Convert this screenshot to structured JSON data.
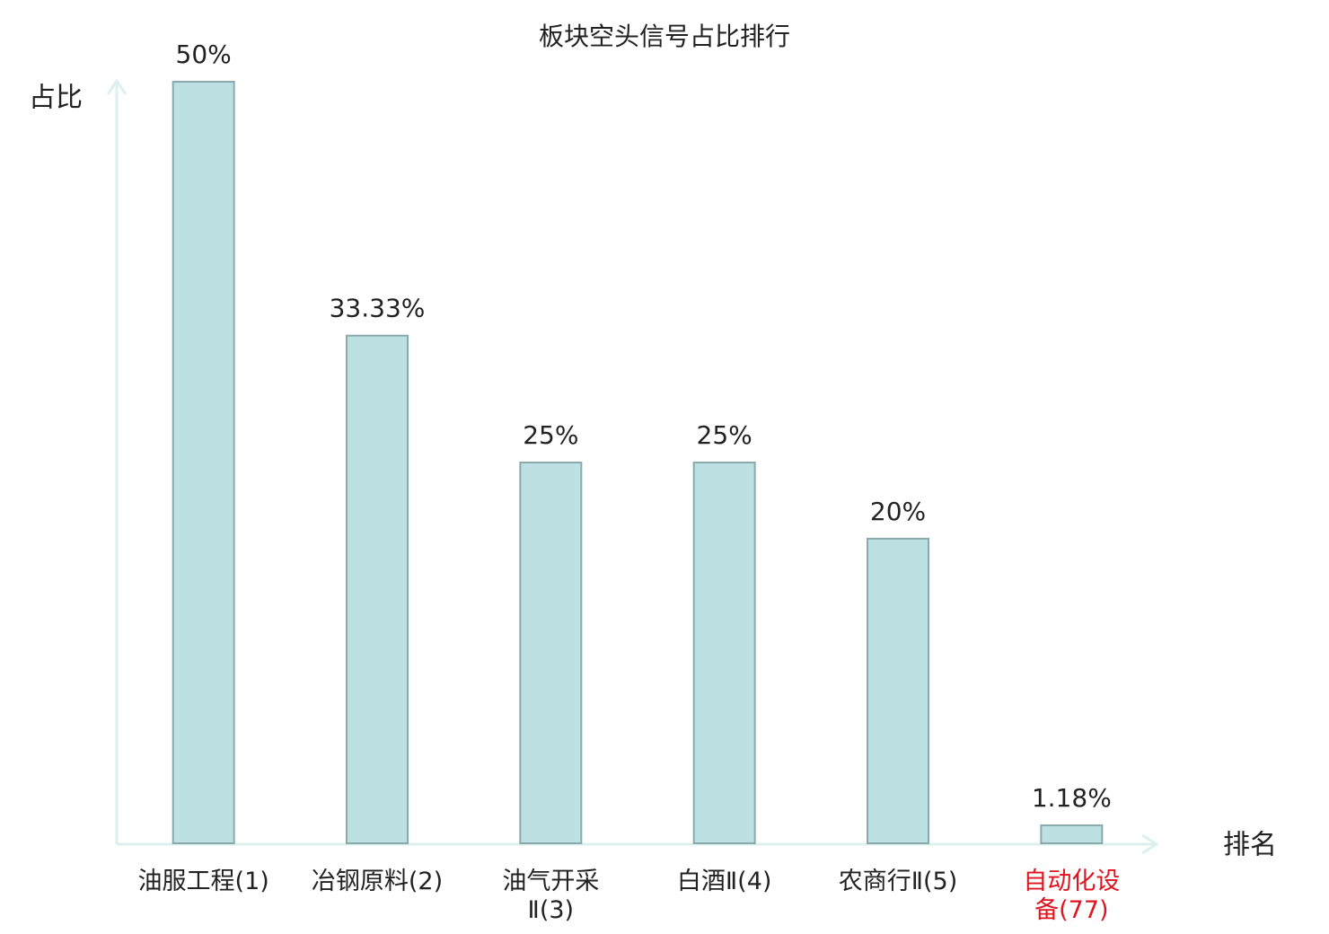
{
  "chart_data": {
    "type": "bar",
    "title": "板块空头信号占比排行",
    "y_label": "占比",
    "x_label": "排名",
    "categories": [
      "油服工程(1)",
      "冶钢原料(2)",
      "油气开采\nⅡ(3)",
      "白酒Ⅱ(4)",
      "农商行Ⅱ(5)",
      "自动化设\n备(77)"
    ],
    "category_colors": [
      "#222222",
      "#222222",
      "#222222",
      "#222222",
      "#222222",
      "#e0141e"
    ],
    "values": [
      50,
      33.33,
      25,
      25,
      20,
      1.18
    ],
    "value_labels": [
      "50%",
      "33.33%",
      "25%",
      "25%",
      "20%",
      "1.18%"
    ],
    "color": "#bde0e2",
    "ylim": [
      0,
      50
    ]
  }
}
